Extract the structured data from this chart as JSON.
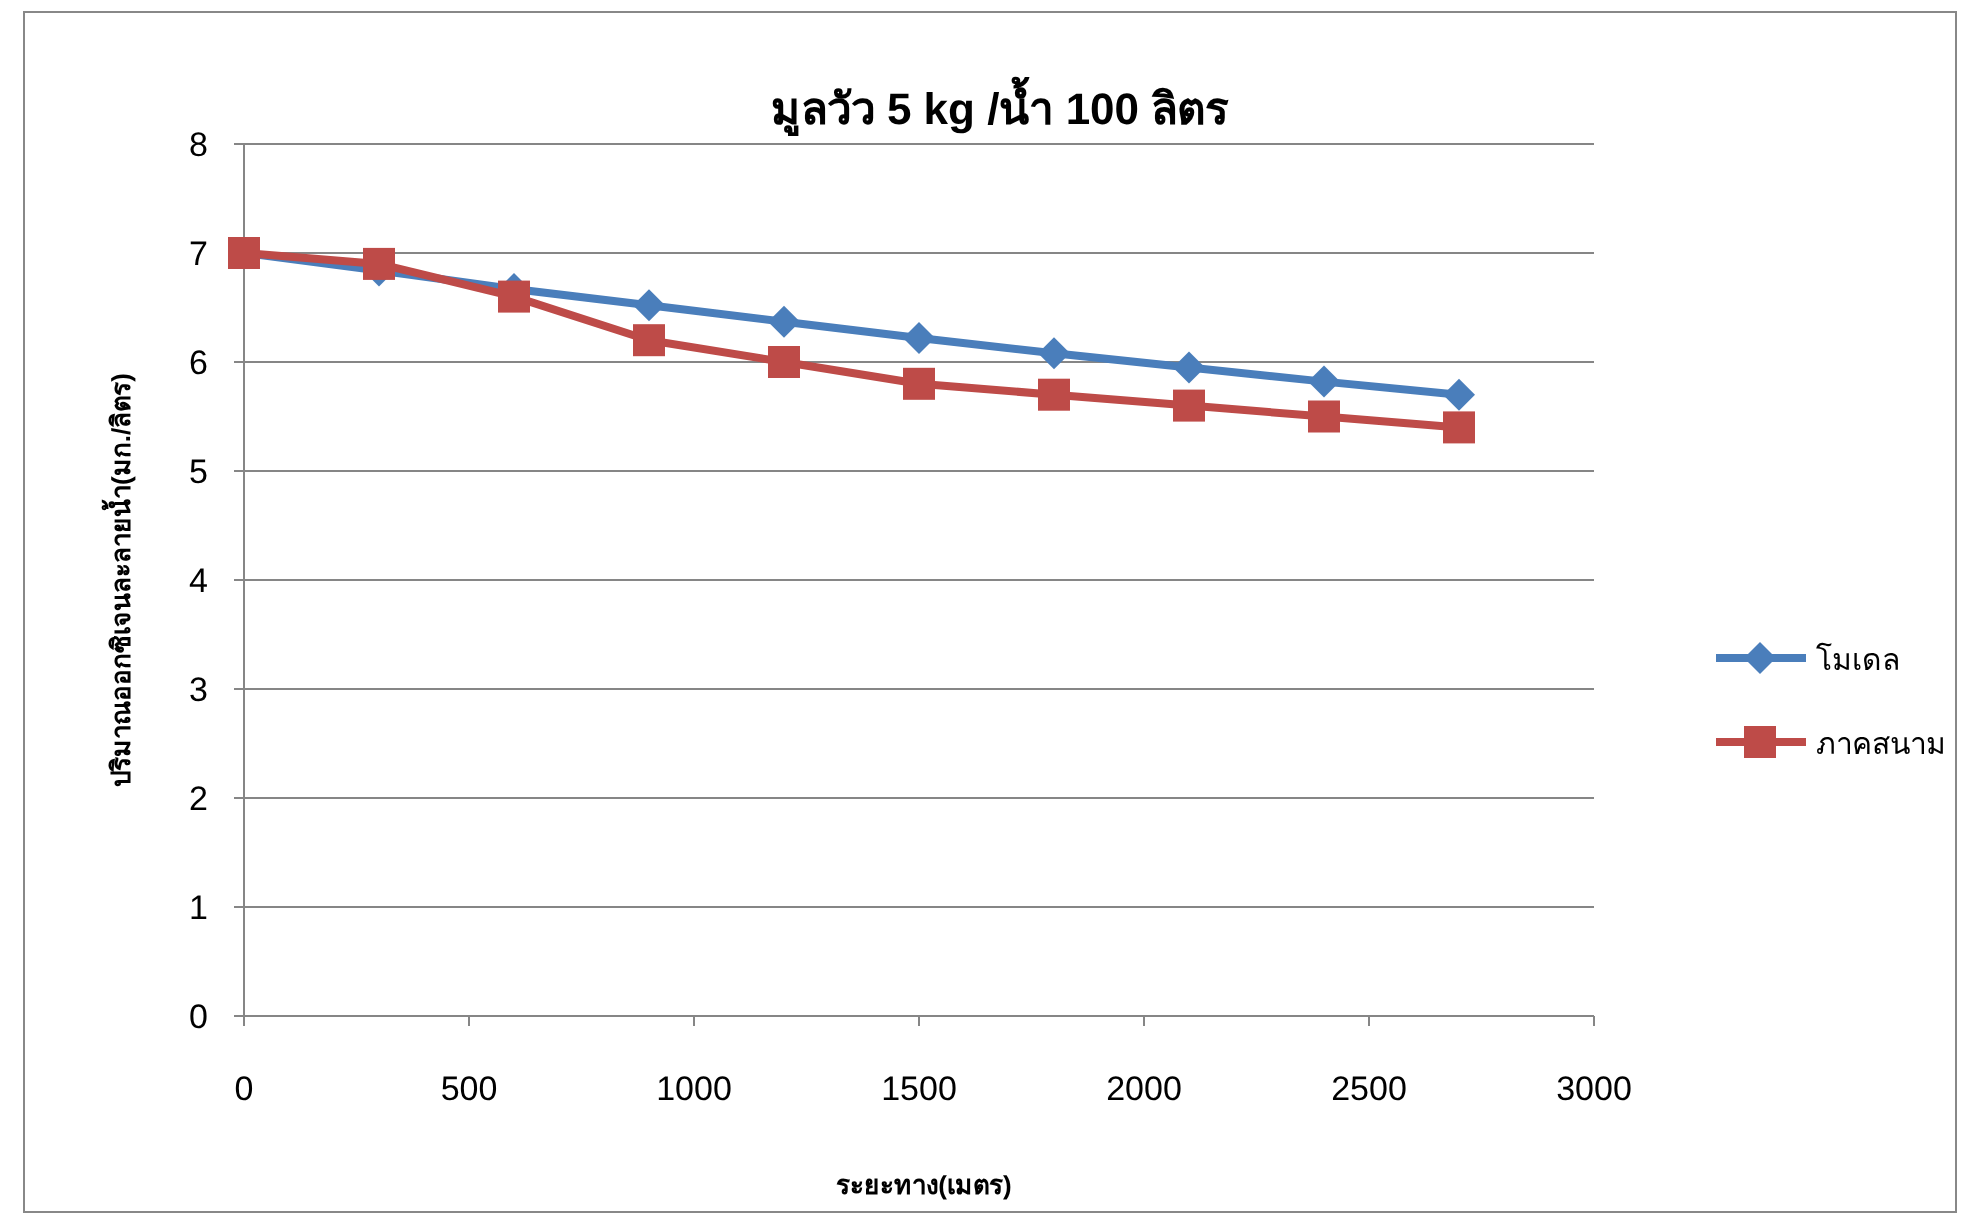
{
  "chart_data": {
    "type": "line",
    "title": "มูลวัว 5 kg /น้ำ 100 ลิตร",
    "xlabel": "ระยะทาง(เมตร)",
    "ylabel": "ปริมาณออกซิเจนละลายน้ำ(มก./ลิตร)",
    "x": [
      0,
      300,
      600,
      900,
      1200,
      1500,
      1800,
      2100,
      2400,
      2700
    ],
    "series": [
      {
        "name": "โมเดล",
        "color": "#4a7ebb",
        "marker": "diamond",
        "values": [
          7.0,
          6.84,
          6.67,
          6.52,
          6.37,
          6.22,
          6.08,
          5.95,
          5.82,
          5.7
        ]
      },
      {
        "name": "ภาคสนาม",
        "color": "#be4b48",
        "marker": "square",
        "values": [
          7.0,
          6.9,
          6.6,
          6.2,
          6.0,
          5.8,
          5.7,
          5.6,
          5.5,
          5.4
        ]
      }
    ],
    "xlim": [
      0,
      3000
    ],
    "xticks": [
      0,
      500,
      1000,
      1500,
      2000,
      2500,
      3000
    ],
    "ylim": [
      0,
      8
    ],
    "yticks": [
      0,
      1,
      2,
      3,
      4,
      5,
      6,
      7,
      8
    ],
    "grid": "y",
    "legend": "right",
    "line_style": "solid"
  }
}
